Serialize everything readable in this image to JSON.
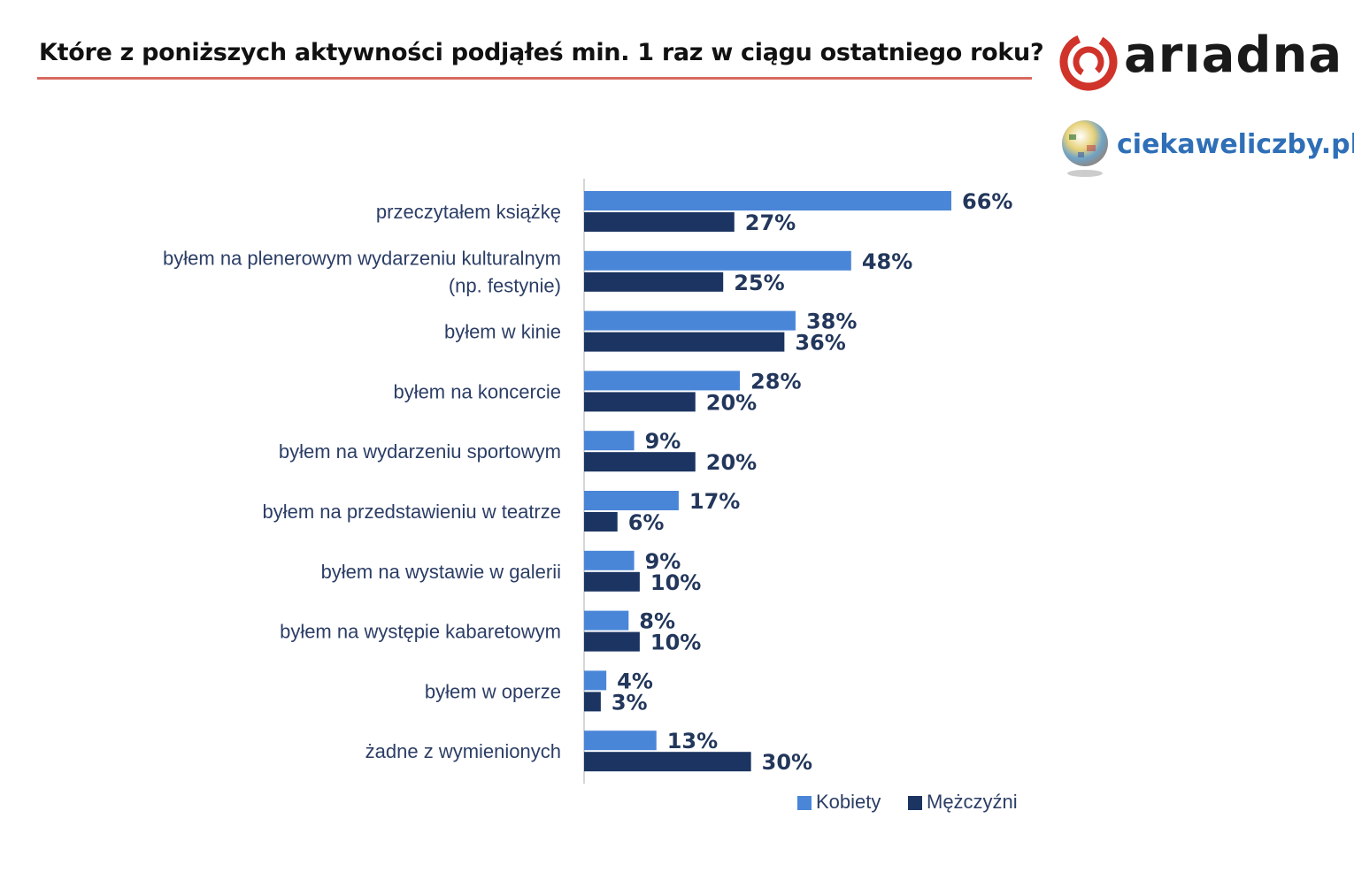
{
  "header": {
    "title": "Które z poniższych aktywności podjąłeś min. 1 raz w ciągu ostatniego roku?",
    "brand": "arıadna",
    "site": "ciekaweliczby.pl"
  },
  "colors": {
    "kobiety": "#4a86d8",
    "mezczyzni": "#1b3461",
    "rule": "#d9695f",
    "brand_red": "#d0332a"
  },
  "chart_data": {
    "type": "bar",
    "orientation": "horizontal",
    "categories": [
      [
        "przeczytałem książkę"
      ],
      [
        "byłem na plenerowym wydarzeniu kulturalnym",
        "(np. festynie)"
      ],
      [
        "byłem w kinie"
      ],
      [
        "byłem na koncercie"
      ],
      [
        "byłem na wydarzeniu sportowym"
      ],
      [
        "byłem na przedstawieniu w teatrze"
      ],
      [
        "byłem na wystawie w galerii"
      ],
      [
        "byłem na występie kabaretowym"
      ],
      [
        "byłem w operze"
      ],
      [
        "żadne z wymienionych"
      ]
    ],
    "series": [
      {
        "name": "Kobiety",
        "values": [
          66,
          48,
          38,
          28,
          9,
          17,
          9,
          8,
          4,
          13
        ]
      },
      {
        "name": "Mężczyźni",
        "values": [
          27,
          25,
          36,
          20,
          20,
          6,
          10,
          10,
          3,
          30
        ]
      }
    ],
    "value_suffix": "%",
    "xlim": [
      0,
      66
    ],
    "grid": false,
    "legend": "bottom-right"
  }
}
